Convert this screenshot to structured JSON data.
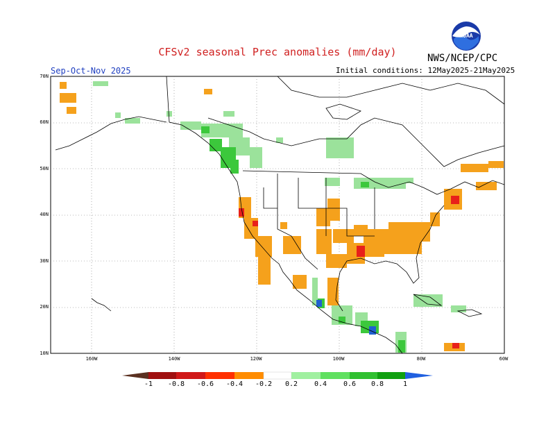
{
  "header": {
    "title": "CFSv2 seasonal Prec anomalies (mm/day)",
    "agency": "NWS/NCEP/CPC",
    "logo_text": "NOAA",
    "season": "Sep-Oct-Nov 2025",
    "initial_conditions": "Initial conditions: 12May2025-21May2025"
  },
  "map": {
    "lat_labels": [
      "70N",
      "60N",
      "50N",
      "40N",
      "30N",
      "20N",
      "10N"
    ],
    "lon_labels": [
      "160W",
      "140W",
      "120W",
      "100W",
      "80W",
      "60W"
    ],
    "colors": {
      "land_outline": "#000000",
      "grid": "#555555",
      "dry_strong": "#e8201a",
      "dry": "#f5a11c",
      "wet_light": "#9be29b",
      "wet": "#3cc83c",
      "wet_strong": "#1a9a1a",
      "wet_extreme": "#2060d0"
    }
  },
  "colorbar": {
    "labels": [
      "-1",
      "-0.8",
      "-0.6",
      "-0.4",
      "-0.2",
      "0.2",
      "0.4",
      "0.6",
      "0.8",
      "1"
    ],
    "colors": [
      "#5a3020",
      "#a01010",
      "#d01818",
      "#ff3000",
      "#ff8c00",
      "#ffa020",
      "#ffffff",
      "#a0f0a0",
      "#60e060",
      "#30c030",
      "#10a010",
      "#007a00",
      "#2060e0"
    ]
  }
}
